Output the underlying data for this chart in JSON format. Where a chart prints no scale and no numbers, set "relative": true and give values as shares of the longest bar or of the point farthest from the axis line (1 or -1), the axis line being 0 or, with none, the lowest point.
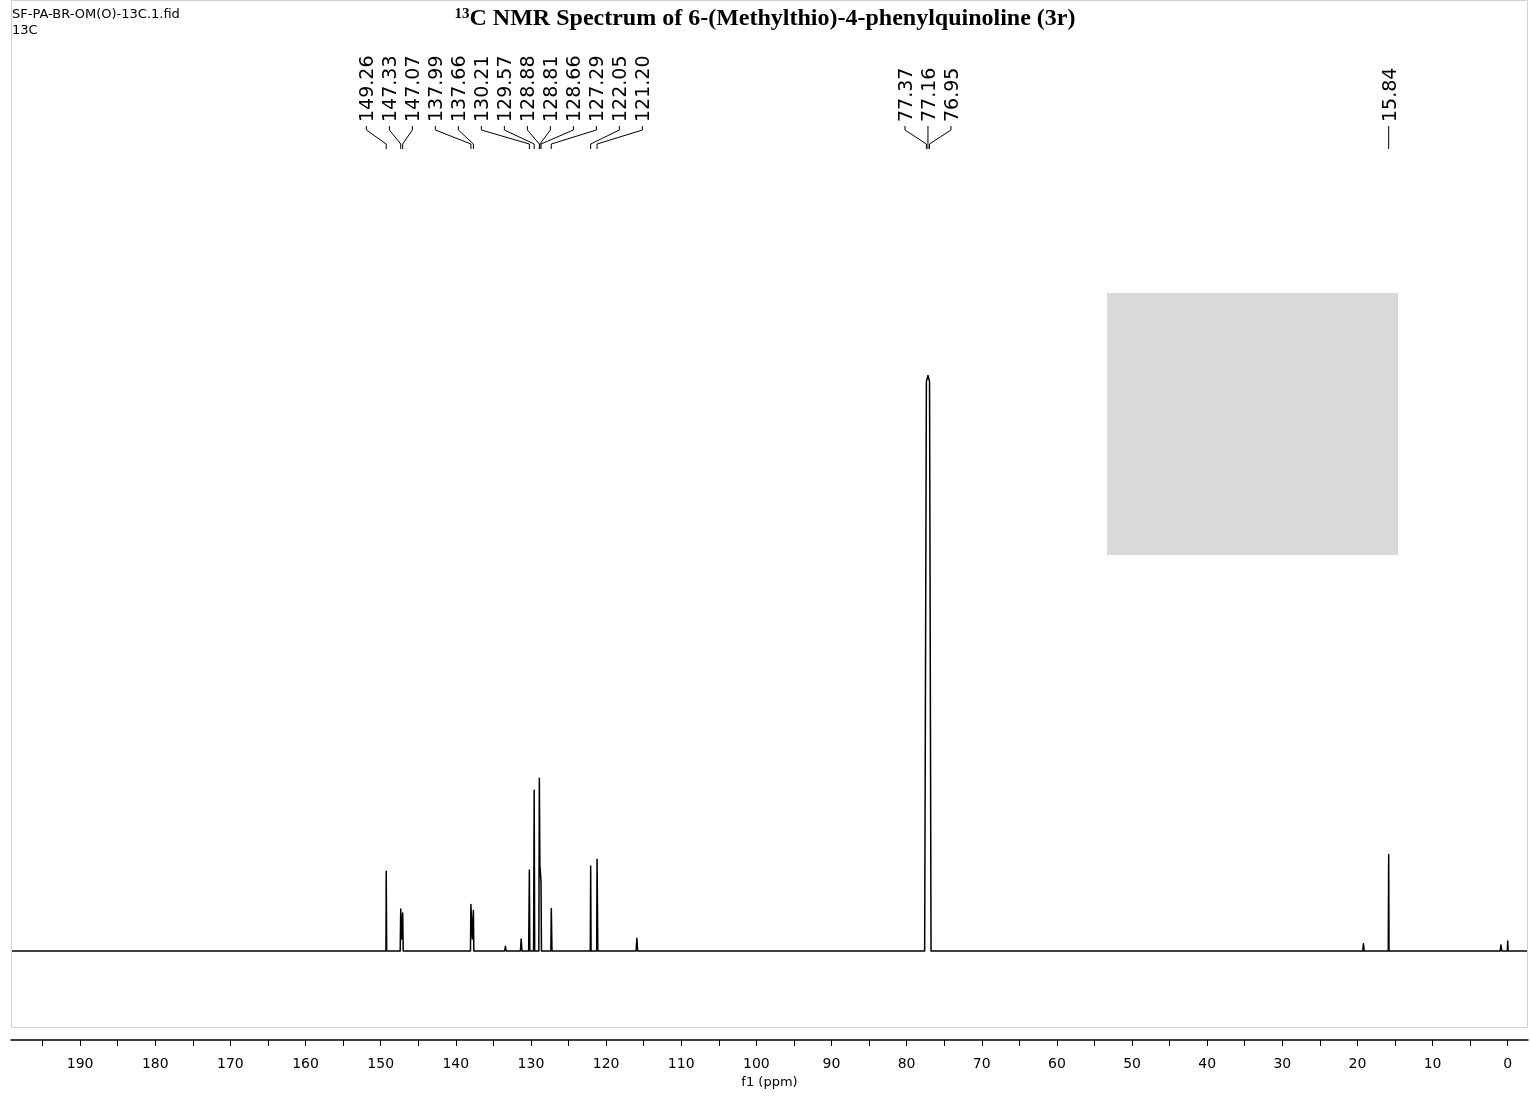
{
  "chart_data": {
    "type": "line",
    "title": "$^{13}$C NMR Spectrum of 6-(Methylthio)-4-phenylquinoline (3r)",
    "xlabel": "f1 (ppm)",
    "relative": true,
    "color": "#000000",
    "marker": "none",
    "line_style": "solid",
    "grid": false,
    "tick_labels": "x",
    "xlim": [
      199.2,
      -2.7
    ],
    "xticks": [
      190,
      180,
      170,
      160,
      150,
      140,
      130,
      120,
      110,
      100,
      90,
      80,
      70,
      60,
      50,
      40,
      30,
      20,
      10,
      0
    ],
    "x": [
      199.2,
      149.3,
      149.26,
      149.2,
      147.4,
      147.33,
      147.2,
      147.07,
      147.0,
      138.05,
      137.99,
      137.8,
      137.66,
      137.6,
      133.5,
      133.4,
      133.3,
      131.4,
      131.3,
      131.2,
      130.3,
      130.21,
      130.15,
      129.65,
      129.57,
      129.5,
      128.95,
      128.88,
      128.81,
      128.66,
      128.6,
      127.35,
      127.29,
      127.2,
      122.1,
      122.05,
      122.0,
      121.25,
      121.2,
      121.1,
      116.0,
      115.9,
      115.8,
      77.6,
      77.37,
      77.16,
      76.95,
      76.75,
      15.9,
      15.84,
      15.8,
      19.3,
      19.2,
      19.1,
      1.0,
      0.9,
      0.8,
      0.05,
      0.0,
      -0.05,
      -2.7
    ],
    "values": [
      0.134,
      0.134,
      0.254,
      0.134,
      0.134,
      0.197,
      0.152,
      0.191,
      0.134,
      0.134,
      0.204,
      0.152,
      0.195,
      0.134,
      0.134,
      0.141,
      0.134,
      0.134,
      0.152,
      0.134,
      0.134,
      0.256,
      0.134,
      0.134,
      0.376,
      0.134,
      0.134,
      0.394,
      0.264,
      0.238,
      0.134,
      0.134,
      0.198,
      0.134,
      0.134,
      0.262,
      0.134,
      0.134,
      0.272,
      0.134,
      0.134,
      0.153,
      0.134,
      0.134,
      0.991,
      1,
      0.991,
      0.134,
      0.134,
      0.279,
      0.134,
      0.134,
      0.145,
      0.134,
      0.134,
      0.143,
      0.134,
      0.134,
      0.149,
      0.134,
      0.134
    ],
    "annotations": [
      "SF-PA-BR-OM(O)-13C.1.fid",
      "13C",
      {
        "text": "149.26",
        "x": 149.26
      },
      {
        "text": "147.33",
        "x": 147.33
      },
      {
        "text": "147.07",
        "x": 147.07
      },
      {
        "text": "137.99",
        "x": 137.99
      },
      {
        "text": "137.66",
        "x": 137.66
      },
      {
        "text": "130.21",
        "x": 130.21
      },
      {
        "text": "129.57",
        "x": 129.57
      },
      {
        "text": "128.88",
        "x": 128.88
      },
      {
        "text": "128.81",
        "x": 128.81
      },
      {
        "text": "128.66",
        "x": 128.66
      },
      {
        "text": "127.29",
        "x": 127.29
      },
      {
        "text": "122.05",
        "x": 122.05
      },
      {
        "text": "121.20",
        "x": 121.2
      },
      {
        "text": "77.37",
        "x": 77.37
      },
      {
        "text": "77.16",
        "x": 77.16
      },
      {
        "text": "76.95",
        "x": 76.95
      },
      {
        "text": "15.84",
        "x": 15.84
      }
    ]
  }
}
